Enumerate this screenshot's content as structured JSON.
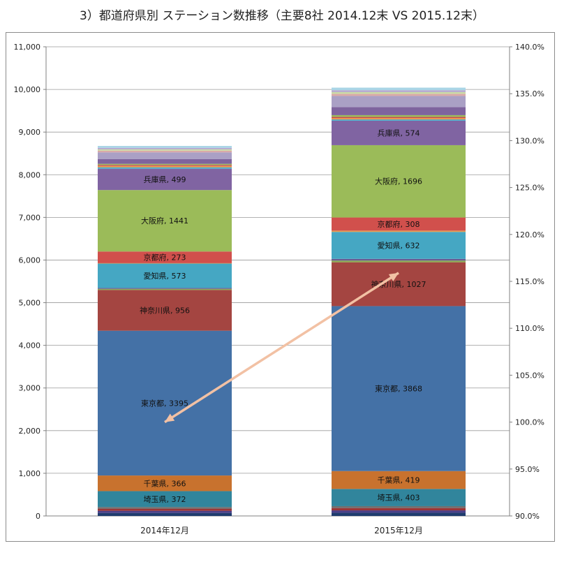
{
  "title": "3）都道府県別 ステーション数推移（主要8社 2014.12末 VS 2015.12末）",
  "chart_data": {
    "type": "bar",
    "stacked": true,
    "categories": [
      "2014年12月",
      "2015年12月"
    ],
    "left_axis": {
      "ticks": [
        "0",
        "1,000",
        "2,000",
        "3,000",
        "4,000",
        "5,000",
        "6,000",
        "7,000",
        "8,000",
        "9,000",
        "10,000",
        "11,000"
      ],
      "ylim": [
        0,
        11000
      ]
    },
    "right_axis": {
      "ticks": [
        "90.0%",
        "95.0%",
        "100.0%",
        "105.0%",
        "110.0%",
        "115.0%",
        "120.0%",
        "125.0%",
        "130.0%",
        "135.0%",
        "140.0%"
      ],
      "ylim": [
        90,
        140
      ]
    },
    "grid": true,
    "series": [
      {
        "color": "#1f3c6e",
        "values": [
          70,
          75
        ]
      },
      {
        "color": "#4a3f88",
        "values": [
          50,
          55
        ]
      },
      {
        "color": "#9b3535",
        "values": [
          50,
          55
        ]
      },
      {
        "color": "#6f6f6f",
        "values": [
          40,
          45
        ]
      },
      {
        "name": "埼玉県",
        "label": "埼玉県, 372",
        "label2": "埼玉県, 403",
        "color": "#31859c",
        "values": [
          372,
          403
        ]
      },
      {
        "name": "千葉県",
        "label": "千葉県, 366",
        "label2": "千葉県, 419",
        "color": "#c8722e",
        "values": [
          366,
          419
        ]
      },
      {
        "name": "東京都",
        "label": "東京都, 3395",
        "label2": "東京都, 3868",
        "color": "#4471a6",
        "values": [
          3395,
          3868
        ]
      },
      {
        "name": "神奈川県",
        "label": "神奈川県, 956",
        "label2": "神奈川県, 1027",
        "color": "#a44541",
        "values": [
          956,
          1027
        ]
      },
      {
        "color": "#8aa851",
        "values": [
          25,
          40
        ]
      },
      {
        "color": "#6a5a92",
        "values": [
          20,
          40
        ]
      },
      {
        "name": "愛知県",
        "label": "愛知県, 573",
        "label2": "愛知県, 632",
        "color": "#45a7c3",
        "values": [
          573,
          632
        ]
      },
      {
        "color": "#e39a4f",
        "values": [
          10,
          30
        ]
      },
      {
        "name": "京都府",
        "label": "京都府, 273",
        "label2": "京都府, 308",
        "color": "#d1504c",
        "values": [
          273,
          308
        ]
      },
      {
        "name": "大阪府",
        "label": "大阪府, 1441",
        "label2": "大阪府, 1696",
        "color": "#9bbb59",
        "values": [
          1441,
          1696
        ]
      },
      {
        "name": "兵庫県",
        "label": "兵庫県, 499",
        "label2": "兵庫県, 574",
        "color": "#8064a2",
        "values": [
          499,
          574
        ]
      },
      {
        "color": "#4bacc6",
        "values": [
          35,
          30
        ]
      },
      {
        "color": "#f79646",
        "values": [
          30,
          30
        ]
      },
      {
        "color": "#c0504d",
        "values": [
          25,
          30
        ]
      },
      {
        "color": "#9bbb59",
        "values": [
          25,
          40
        ]
      },
      {
        "color": "#7e649e",
        "values": [
          110,
          190
        ]
      },
      {
        "color": "#aaa0c5",
        "values": [
          160,
          260
        ]
      },
      {
        "color": "#d9a9a8",
        "values": [
          40,
          50
        ]
      },
      {
        "color": "#c9dba4",
        "values": [
          30,
          40
        ]
      },
      {
        "color": "#b6a9cf",
        "values": [
          35,
          45
        ]
      },
      {
        "color": "#a9d5e6",
        "values": [
          45,
          60
        ]
      }
    ],
    "growth_arrow": {
      "from": {
        "category": "2014年12月",
        "value": 100.0
      },
      "to": {
        "category": "2015年12月",
        "value": 115.9
      },
      "color": "#f2c1a4"
    }
  }
}
